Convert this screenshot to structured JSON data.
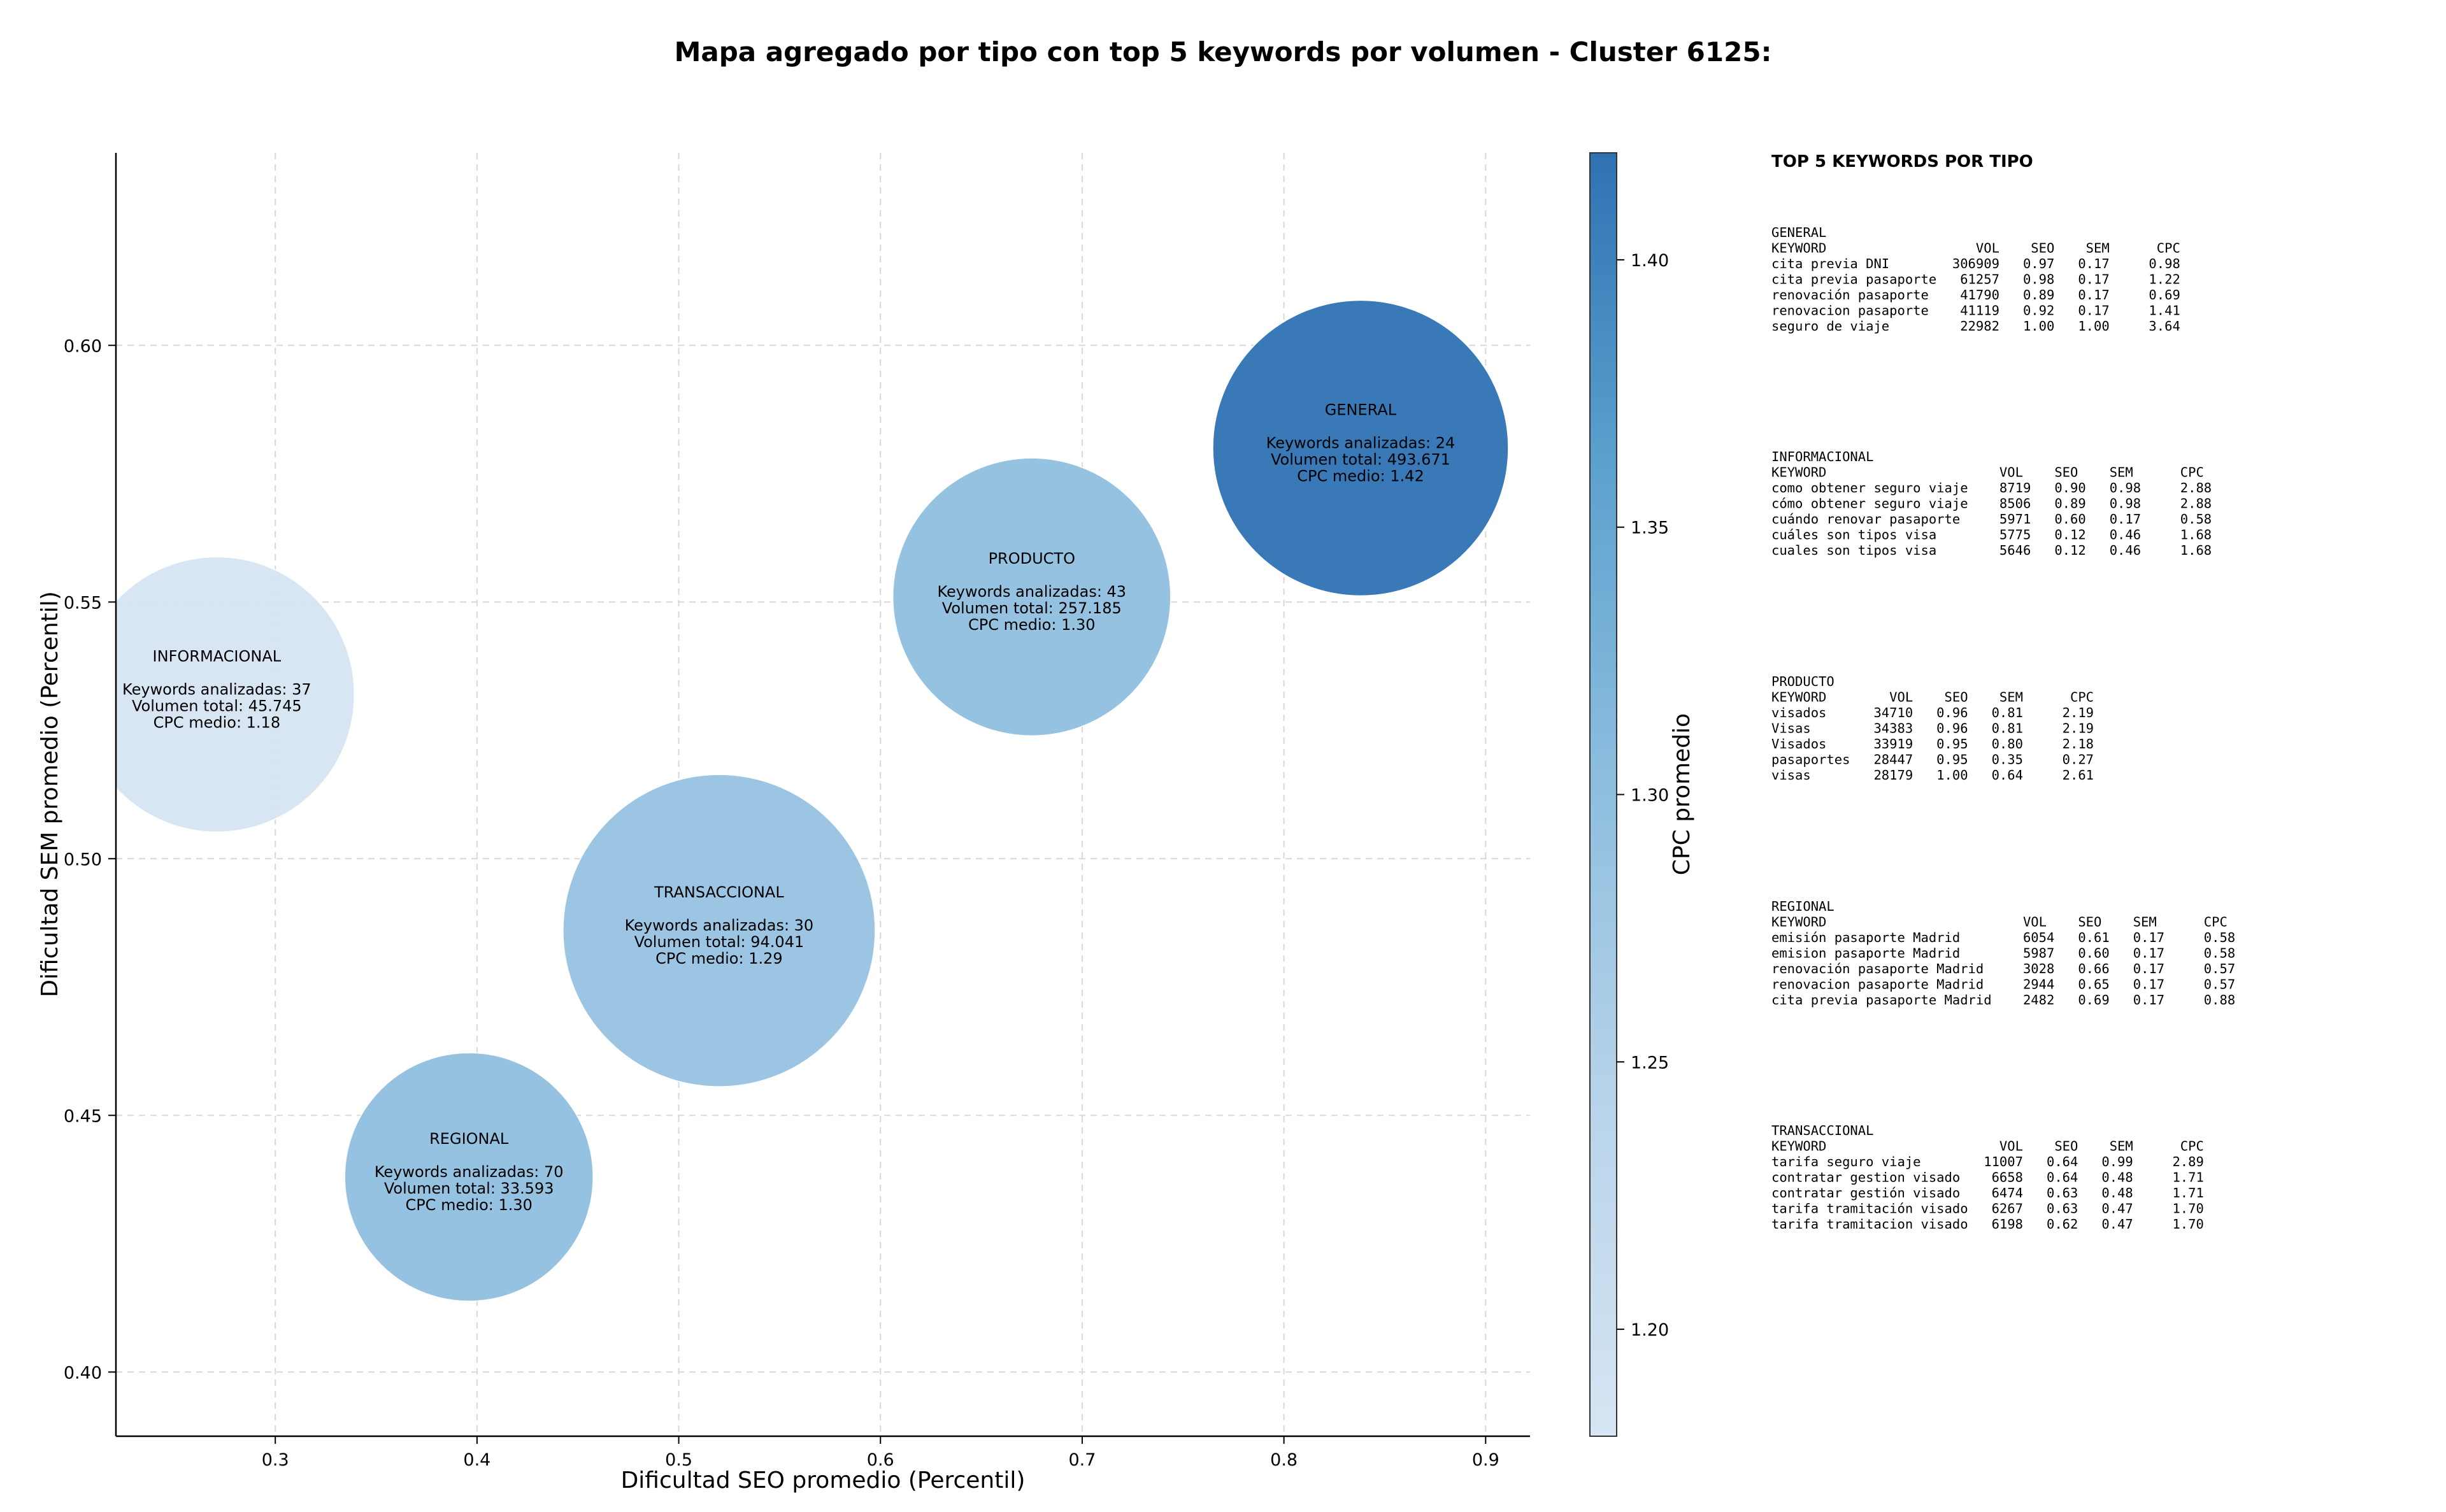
{
  "chart_data": {
    "type": "scatter",
    "title": "Mapa agregado por tipo con top 5 keywords por volumen - Cluster 6125:",
    "xlabel": "Dificultad SEO promedio (Percentil)",
    "ylabel": "Dificultad SEM promedio (Percentil)",
    "xlim": [
      0.221,
      0.922
    ],
    "ylim": [
      0.3875,
      0.6375
    ],
    "xticks": [
      "0.3",
      "0.4",
      "0.5",
      "0.6",
      "0.7",
      "0.8",
      "0.9"
    ],
    "yticks": [
      "0.40",
      "0.45",
      "0.50",
      "0.55",
      "0.60"
    ],
    "grid": true,
    "bubble_size_encodes": "Volumen total",
    "color_encodes": "CPC promedio",
    "colorbar": {
      "label": "CPC promedio",
      "range": [
        1.18,
        1.42
      ],
      "ticks": [
        "1.20",
        "1.25",
        "1.30",
        "1.35",
        "1.40"
      ]
    },
    "points": [
      {
        "label": "INFORMACIONAL",
        "x": 0.271,
        "y": 0.532,
        "keywords": "37",
        "volume": 45745,
        "cpc": 1.18,
        "lines": [
          "Keywords analizadas: 37",
          "Volumen total: 45.745",
          "CPC medio: 1.18"
        ]
      },
      {
        "label": "PRODUCTO",
        "x": 0.675,
        "y": 0.551,
        "keywords": "43",
        "volume": 257185,
        "cpc": 1.3,
        "lines": [
          "Keywords analizadas: 43",
          "Volumen total: 257.185",
          "CPC medio: 1.30"
        ]
      },
      {
        "label": "GENERAL",
        "x": 0.838,
        "y": 0.58,
        "keywords": "24",
        "volume": 493671,
        "cpc": 1.42,
        "lines": [
          "Keywords analizadas: 24",
          "Volumen total: 493.671",
          "CPC medio: 1.42"
        ]
      },
      {
        "label": "TRANSACCIONAL",
        "x": 0.52,
        "y": 0.486,
        "keywords": "30",
        "volume": 94041,
        "cpc": 1.29,
        "lines": [
          "Keywords analizadas: 30",
          "Volumen total: 94.041",
          "CPC medio: 1.29"
        ]
      },
      {
        "label": "REGIONAL",
        "x": 0.396,
        "y": 0.438,
        "keywords": "70",
        "volume": 33593,
        "cpc": 1.3,
        "lines": [
          "Keywords analizadas: 70",
          "Volumen total: 33.593",
          "CPC medio: 1.30"
        ]
      }
    ]
  },
  "side_panel": {
    "heading": "TOP 5 KEYWORDS POR TIPO",
    "blocks": [
      {
        "type": "GENERAL",
        "lines": [
          "GENERAL",
          "KEYWORD                   VOL    SEO    SEM      CPC",
          "cita previa DNI        306909   0.97   0.17     0.98",
          "cita previa pasaporte   61257   0.98   0.17     1.22",
          "renovación pasaporte    41790   0.89   0.17     0.69",
          "renovacion pasaporte    41119   0.92   0.17     1.41",
          "seguro de viaje         22982   1.00   1.00     3.64"
        ]
      },
      {
        "type": "INFORMACIONAL",
        "lines": [
          "INFORMACIONAL",
          "KEYWORD                      VOL    SEO    SEM      CPC",
          "como obtener seguro viaje    8719   0.90   0.98     2.88",
          "cómo obtener seguro viaje    8506   0.89   0.98     2.88",
          "cuándo renovar pasaporte     5971   0.60   0.17     0.58",
          "cuáles son tipos visa        5775   0.12   0.46     1.68",
          "cuales son tipos visa        5646   0.12   0.46     1.68"
        ]
      },
      {
        "type": "PRODUCTO",
        "lines": [
          "PRODUCTO",
          "KEYWORD        VOL    SEO    SEM      CPC",
          "visados      34710   0.96   0.81     2.19",
          "Visas        34383   0.96   0.81     2.19",
          "Visados      33919   0.95   0.80     2.18",
          "pasaportes   28447   0.95   0.35     0.27",
          "visas        28179   1.00   0.64     2.61"
        ]
      },
      {
        "type": "REGIONAL",
        "lines": [
          "REGIONAL",
          "KEYWORD                         VOL    SEO    SEM      CPC",
          "emisión pasaporte Madrid        6054   0.61   0.17     0.58",
          "emision pasaporte Madrid        5987   0.60   0.17     0.58",
          "renovación pasaporte Madrid     3028   0.66   0.17     0.57",
          "renovacion pasaporte Madrid     2944   0.65   0.17     0.57",
          "cita previa pasaporte Madrid    2482   0.69   0.17     0.88"
        ]
      },
      {
        "type": "TRANSACCIONAL",
        "lines": [
          "TRANSACCIONAL",
          "KEYWORD                      VOL    SEO    SEM      CPC",
          "tarifa seguro viaje        11007   0.64   0.99     2.89",
          "contratar gestion visado    6658   0.64   0.48     1.71",
          "contratar gestión visado    6474   0.63   0.48     1.71",
          "tarifa tramitación visado   6267   0.63   0.47     1.70",
          "tarifa tramitacion visado   6198   0.62   0.47     1.70"
        ]
      }
    ]
  }
}
